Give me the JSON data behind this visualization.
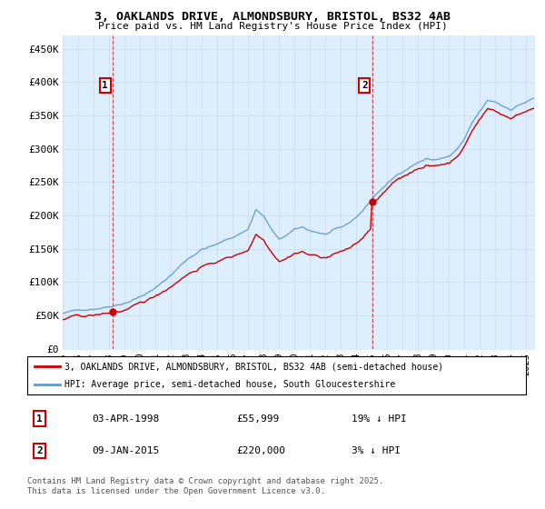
{
  "title1": "3, OAKLANDS DRIVE, ALMONDSBURY, BRISTOL, BS32 4AB",
  "title2": "Price paid vs. HM Land Registry's House Price Index (HPI)",
  "ylabel_ticks": [
    "£0",
    "£50K",
    "£100K",
    "£150K",
    "£200K",
    "£250K",
    "£300K",
    "£350K",
    "£400K",
    "£450K"
  ],
  "ytick_values": [
    0,
    50000,
    100000,
    150000,
    200000,
    250000,
    300000,
    350000,
    400000,
    450000
  ],
  "ylim": [
    0,
    470000
  ],
  "xlim_start": 1995.0,
  "xlim_end": 2025.5,
  "purchase1_x": 1998.25,
  "purchase1_y": 55999,
  "purchase2_x": 2015.03,
  "purchase2_y": 220000,
  "legend_line1": "3, OAKLANDS DRIVE, ALMONDSBURY, BRISTOL, BS32 4AB (semi-detached house)",
  "legend_line2": "HPI: Average price, semi-detached house, South Gloucestershire",
  "table_row1_label": "1",
  "table_row1_date": "03-APR-1998",
  "table_row1_price": "£55,999",
  "table_row1_hpi": "19% ↓ HPI",
  "table_row2_label": "2",
  "table_row2_date": "09-JAN-2015",
  "table_row2_price": "£220,000",
  "table_row2_hpi": "3% ↓ HPI",
  "footer": "Contains HM Land Registry data © Crown copyright and database right 2025.\nThis data is licensed under the Open Government Licence v3.0.",
  "red_color": "#cc0000",
  "blue_color": "#6699cc",
  "blue_fill": "#ddeeff",
  "background_color": "#ffffff",
  "grid_color": "#ccddee",
  "dline_color": "#cc0000"
}
